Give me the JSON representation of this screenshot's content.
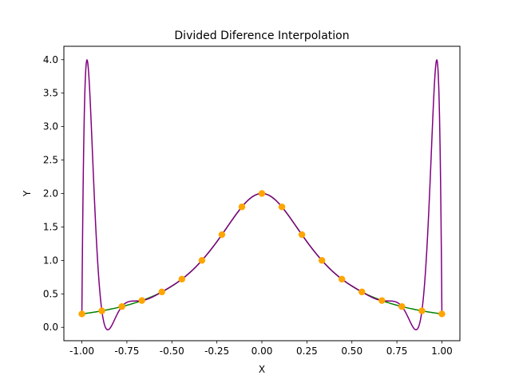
{
  "chart_data": {
    "type": "line",
    "title": "Divided Diference Interpolation",
    "xlabel": "X",
    "ylabel": "Y",
    "xlim": [
      -1.1,
      1.1
    ],
    "ylim": [
      -0.2,
      4.2
    ],
    "xticks": [
      "-1.00",
      "-0.75",
      "-0.50",
      "-0.25",
      "0.00",
      "0.25",
      "0.50",
      "0.75",
      "1.00"
    ],
    "yticks": [
      "0.0",
      "0.5",
      "1.0",
      "1.5",
      "2.0",
      "2.5",
      "3.0",
      "3.5",
      "4.0"
    ],
    "grid": false,
    "colors": {
      "true_function": "#008000",
      "interpolant": "#800080",
      "nodes": "#FFA500"
    },
    "series": [
      {
        "type": "line",
        "x_range": [
          -1,
          1
        ],
        "formula": "2/(1+9x^2)"
      },
      {
        "type": "line",
        "x_range": [
          -1,
          1
        ],
        "note_fn": "degree-18 interpolating polynomial through the 19 nodes"
      },
      {
        "type": "scatter",
        "x": [
          -1.0,
          -0.8889,
          -0.7778,
          -0.6667,
          -0.5556,
          -0.4444,
          -0.3333,
          -0.2222,
          -0.1111,
          0.0,
          0.1111,
          0.2222,
          0.3333,
          0.4444,
          0.5556,
          0.6667,
          0.7778,
          0.8889,
          1.0
        ],
        "y": [
          0.2,
          0.246,
          0.31,
          0.4,
          0.529,
          0.72,
          1.0,
          1.385,
          1.8,
          2.0,
          1.8,
          1.385,
          1.0,
          0.72,
          0.529,
          0.4,
          0.31,
          0.246,
          0.2
        ]
      }
    ]
  }
}
